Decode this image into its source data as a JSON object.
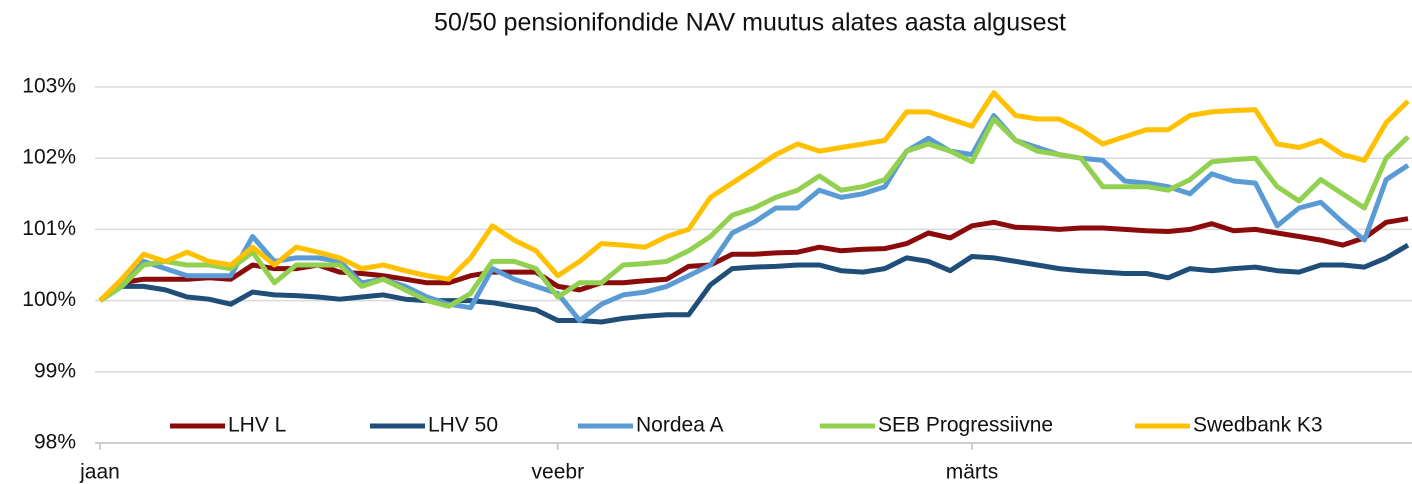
{
  "chart_data": {
    "type": "line",
    "title": "50/50 pensionifondide NAV muutus alates aasta algusest",
    "categories": [
      "jaan",
      null,
      null,
      null,
      null,
      null,
      null,
      null,
      null,
      null,
      null,
      null,
      null,
      null,
      null,
      null,
      null,
      null,
      null,
      null,
      null,
      "veebr",
      null,
      null,
      null,
      null,
      null,
      null,
      null,
      null,
      null,
      null,
      null,
      null,
      null,
      null,
      null,
      null,
      null,
      null,
      "märts",
      null,
      null,
      null,
      null,
      null,
      null,
      null,
      null,
      null,
      null,
      null,
      null,
      null,
      null,
      null,
      null,
      null,
      null,
      null,
      null
    ],
    "series": [
      {
        "name": "LHV L",
        "color": "#8b0a0a",
        "values": [
          100,
          100.25,
          100.3,
          100.3,
          100.3,
          100.32,
          100.3,
          100.5,
          100.45,
          100.45,
          100.5,
          100.4,
          100.38,
          100.35,
          100.3,
          100.25,
          100.25,
          100.35,
          100.4,
          100.4,
          100.4,
          100.2,
          100.15,
          100.25,
          100.25,
          100.28,
          100.3,
          100.48,
          100.5,
          100.65,
          100.65,
          100.67,
          100.68,
          100.75,
          100.7,
          100.72,
          100.73,
          100.8,
          100.95,
          100.88,
          101.05,
          101.1,
          101.03,
          101.02,
          101.0,
          101.02,
          101.02,
          101.0,
          100.98,
          100.97,
          101.0,
          101.08,
          100.98,
          101.0,
          100.95,
          100.9,
          100.85,
          100.78,
          100.88,
          101.1,
          101.15
        ]
      },
      {
        "name": "LHV 50",
        "color": "#1f4e79",
        "values": [
          100,
          100.2,
          100.2,
          100.15,
          100.05,
          100.02,
          99.95,
          100.12,
          100.08,
          100.07,
          100.05,
          100.02,
          100.05,
          100.08,
          100.02,
          100.0,
          100.0,
          100.0,
          99.97,
          99.92,
          99.87,
          99.72,
          99.72,
          99.7,
          99.75,
          99.78,
          99.8,
          99.8,
          100.22,
          100.45,
          100.47,
          100.48,
          100.5,
          100.5,
          100.42,
          100.4,
          100.45,
          100.6,
          100.55,
          100.42,
          100.62,
          100.6,
          100.55,
          100.5,
          100.45,
          100.42,
          100.4,
          100.38,
          100.38,
          100.32,
          100.45,
          100.42,
          100.45,
          100.47,
          100.42,
          100.4,
          100.5,
          100.5,
          100.47,
          100.6,
          100.78
        ]
      },
      {
        "name": "Nordea A",
        "color": "#5b9bd5",
        "values": [
          100,
          100.25,
          100.55,
          100.45,
          100.35,
          100.35,
          100.35,
          100.9,
          100.55,
          100.6,
          100.6,
          100.55,
          100.25,
          100.3,
          100.2,
          100.05,
          99.95,
          99.9,
          100.45,
          100.3,
          100.2,
          100.1,
          99.72,
          99.95,
          100.08,
          100.12,
          100.2,
          100.35,
          100.5,
          100.95,
          101.1,
          101.3,
          101.3,
          101.55,
          101.45,
          101.5,
          101.6,
          102.1,
          102.28,
          102.1,
          102.05,
          102.6,
          102.25,
          102.15,
          102.05,
          102.0,
          101.97,
          101.68,
          101.65,
          101.6,
          101.5,
          101.78,
          101.68,
          101.65,
          101.05,
          101.3,
          101.38,
          101.1,
          100.85,
          101.7,
          101.9
        ]
      },
      {
        "name": "SEB Progressiivne",
        "color": "#92d050",
        "values": [
          100,
          100.2,
          100.5,
          100.55,
          100.5,
          100.5,
          100.45,
          100.68,
          100.25,
          100.5,
          100.5,
          100.5,
          100.2,
          100.3,
          100.15,
          100.0,
          99.92,
          100.1,
          100.55,
          100.55,
          100.45,
          100.05,
          100.25,
          100.25,
          100.5,
          100.52,
          100.55,
          100.7,
          100.9,
          101.2,
          101.3,
          101.45,
          101.55,
          101.75,
          101.55,
          101.6,
          101.7,
          102.1,
          102.2,
          102.1,
          101.95,
          102.55,
          102.25,
          102.1,
          102.05,
          102.0,
          101.6,
          101.6,
          101.6,
          101.55,
          101.7,
          101.95,
          101.98,
          102.0,
          101.6,
          101.4,
          101.7,
          101.5,
          101.3,
          102.0,
          102.3
        ]
      },
      {
        "name": "Swedbank K3",
        "color": "#ffc000",
        "values": [
          100,
          100.3,
          100.65,
          100.55,
          100.68,
          100.55,
          100.5,
          100.75,
          100.5,
          100.75,
          100.68,
          100.6,
          100.45,
          100.5,
          100.42,
          100.35,
          100.3,
          100.6,
          101.05,
          100.85,
          100.7,
          100.35,
          100.55,
          100.8,
          100.78,
          100.75,
          100.9,
          101.0,
          101.45,
          101.65,
          101.85,
          102.05,
          102.2,
          102.1,
          102.15,
          102.2,
          102.25,
          102.65,
          102.65,
          102.55,
          102.45,
          102.92,
          102.6,
          102.55,
          102.55,
          102.4,
          102.2,
          102.3,
          102.4,
          102.4,
          102.6,
          102.65,
          102.67,
          102.68,
          102.2,
          102.15,
          102.25,
          102.05,
          101.97,
          102.5,
          102.8
        ]
      }
    ],
    "ylim": [
      98,
      103
    ],
    "yticks": [
      {
        "value": 98,
        "label": "98%"
      },
      {
        "value": 99,
        "label": "99%"
      },
      {
        "value": 100,
        "label": "100%"
      },
      {
        "value": 101,
        "label": "101%"
      },
      {
        "value": 102,
        "label": "102%"
      },
      {
        "value": 103,
        "label": "103%"
      }
    ],
    "grid": true,
    "legend": "bottom"
  }
}
